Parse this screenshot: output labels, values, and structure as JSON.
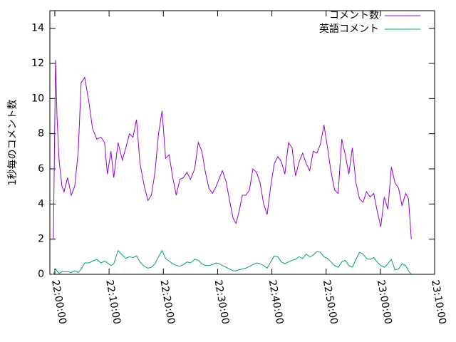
{
  "chart_data": {
    "type": "line",
    "y_label": "1秒毎のコメント数",
    "x": [
      "21:59:29",
      "21:59:44",
      "22:00:08",
      "22:00:24",
      "22:00:47",
      "22:01:19",
      "22:01:42",
      "22:02:21",
      "22:03:01",
      "22:03:40",
      "22:04:19",
      "22:04:51",
      "22:05:30",
      "22:06:17",
      "22:06:56",
      "22:07:43",
      "22:08:30",
      "22:09:10",
      "22:09:41",
      "22:10:20",
      "22:10:52",
      "22:11:39",
      "22:12:26",
      "22:13:05",
      "22:13:45",
      "22:14:24",
      "22:15:03",
      "22:15:42",
      "22:16:30",
      "22:17:09",
      "22:17:48",
      "22:18:27",
      "22:19:07",
      "22:19:46",
      "22:20:25",
      "22:21:04",
      "22:21:44",
      "22:22:23",
      "22:23:02",
      "22:23:41",
      "22:24:21",
      "22:25:00",
      "22:25:47",
      "22:26:26",
      "22:27:06",
      "22:27:45",
      "22:28:24",
      "22:29:03",
      "22:29:43",
      "22:30:22",
      "22:30:53",
      "22:31:33",
      "22:32:12",
      "22:32:51",
      "22:33:23",
      "22:33:54",
      "22:34:33",
      "22:35:12",
      "22:35:52",
      "22:36:31",
      "22:37:10",
      "22:37:50",
      "22:38:29",
      "22:39:08",
      "22:39:47",
      "22:40:27",
      "22:41:06",
      "22:41:45",
      "22:42:24",
      "22:43:04",
      "22:43:43",
      "22:44:22",
      "22:45:01",
      "22:45:41",
      "22:46:20",
      "22:46:59",
      "22:47:38",
      "22:48:18",
      "22:48:57",
      "22:49:36",
      "22:50:16",
      "22:50:55",
      "22:51:34",
      "22:52:13",
      "22:52:53",
      "22:53:32",
      "22:54:11",
      "22:54:50",
      "22:55:30",
      "22:56:09",
      "22:56:48",
      "22:57:27",
      "22:58:07",
      "22:58:46",
      "22:59:25",
      "23:00:04",
      "23:00:44",
      "23:01:23",
      "23:02:02",
      "23:02:42",
      "23:03:21",
      "23:04:00",
      "23:04:39",
      "23:05:11",
      "23:05:42"
    ],
    "series": [
      {
        "name": "コメント数",
        "color": "#9400d3",
        "values": [
          2,
          2,
          12.2,
          9,
          6.5,
          5,
          4.7,
          5.5,
          4.5,
          5,
          7,
          10.9,
          11.2,
          9.8,
          8.3,
          7.7,
          7.8,
          7.5,
          5.7,
          7,
          5.5,
          7.5,
          6.5,
          7.2,
          8,
          7.8,
          8.8,
          6.3,
          5,
          4.2,
          4.5,
          5.8,
          8,
          9.3,
          6.6,
          6.8,
          5.5,
          4.5,
          5.4,
          5.5,
          5.8,
          5.4,
          6,
          7.5,
          7,
          5.8,
          4.9,
          4.6,
          5,
          5.5,
          5.9,
          5.3,
          4.2,
          3.2,
          2.9,
          3.5,
          4.5,
          4.5,
          4.8,
          6,
          5.8,
          5.2,
          4,
          3.4,
          5,
          6.3,
          6.7,
          6.4,
          5.7,
          7.5,
          7.2,
          5.6,
          6.4,
          6.9,
          6.3,
          5.9,
          7,
          6.9,
          7.4,
          8.5,
          7.2,
          5.8,
          4.8,
          4.6,
          7.7,
          6.8,
          5.7,
          7.2,
          5.2,
          4.3,
          4.1,
          4.7,
          4.4,
          4.6,
          3.6,
          2.7,
          4.4,
          3.7,
          6.1,
          5.2,
          4.9,
          3.9,
          4.6,
          4.3,
          2
        ]
      },
      {
        "name": "英語コメント",
        "color": "#009e73",
        "values": [
          0,
          0,
          0.3,
          0.2,
          0.05,
          0.15,
          0.15,
          0.15,
          0.1,
          0.2,
          0.1,
          0.3,
          0.65,
          0.65,
          0.75,
          0.85,
          0.65,
          0.75,
          0.65,
          0.5,
          0.6,
          1.35,
          1.1,
          0.9,
          1,
          0.95,
          1.05,
          0.7,
          0.45,
          0.35,
          0.4,
          0.6,
          1,
          1.35,
          0.9,
          0.75,
          0.6,
          0.5,
          0.45,
          0.55,
          0.7,
          0.65,
          0.85,
          0.8,
          0.6,
          0.5,
          0.5,
          0.55,
          0.65,
          0.6,
          0.5,
          0.4,
          0.3,
          0.2,
          0.2,
          0.25,
          0.3,
          0.35,
          0.45,
          0.55,
          0.65,
          0.6,
          0.5,
          0.35,
          0.7,
          1.05,
          1,
          0.7,
          0.6,
          0.7,
          0.8,
          0.85,
          1,
          0.9,
          1.15,
          1,
          1.1,
          1.3,
          1.25,
          1,
          0.9,
          0.7,
          0.5,
          0.4,
          0.7,
          0.8,
          0.5,
          0.4,
          0.85,
          1.25,
          1.15,
          0.9,
          0.85,
          0.95,
          0.7,
          0.5,
          0.4,
          0.6,
          0.85,
          0.25,
          0.3,
          0.6,
          0.5,
          0.2,
          0
        ]
      }
    ],
    "xlim": [
      "21:59:05",
      "23:10:00"
    ],
    "xticks": [
      "22:00:00",
      "22:10:00",
      "22:20:00",
      "22:30:00",
      "22:40:00",
      "22:50:00",
      "23:00:00",
      "23:10:00"
    ],
    "ylim": [
      0,
      15
    ],
    "yticks": [
      0,
      2,
      4,
      6,
      8,
      10,
      12,
      14
    ],
    "grid": false,
    "legend": "top right"
  }
}
